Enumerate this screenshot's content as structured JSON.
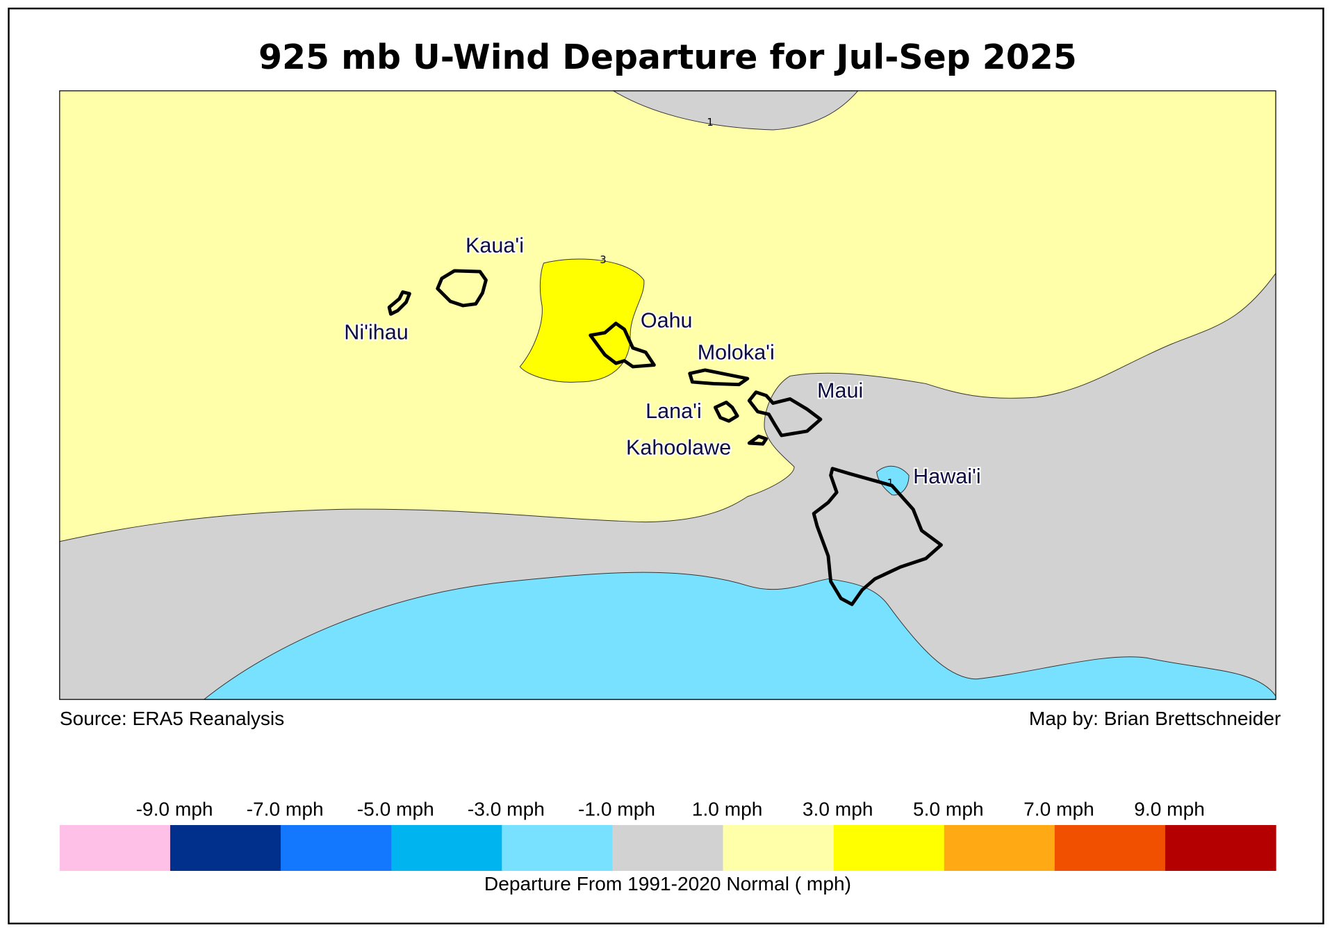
{
  "title": "925 mb U-Wind Departure for Jul-Sep 2025",
  "map": {
    "islands": [
      {
        "label": "Kaua'i"
      },
      {
        "label": "Ni'ihau"
      },
      {
        "label": "Oahu"
      },
      {
        "label": "Moloka'i"
      },
      {
        "label": "Maui"
      },
      {
        "label": "Lana'i"
      },
      {
        "label": "Kahoolawe"
      },
      {
        "label": "Hawai'i"
      }
    ],
    "contour_labels": [
      "1",
      "3",
      "-1"
    ]
  },
  "source": "Source: ERA5 Reanalysis",
  "credit": "Map by: Brian Brettschneider",
  "colorbar": {
    "colors": [
      "#ffc0e8",
      "#00308c",
      "#1478ff",
      "#00b4f0",
      "#78e1ff",
      "#d2d2d2",
      "#ffffaa",
      "#ffff00",
      "#ffaa14",
      "#f05000",
      "#b40000"
    ],
    "tick_labels": [
      "-9.0 mph",
      "-7.0 mph",
      "-5.0 mph",
      "-3.0 mph",
      "-1.0 mph",
      "1.0 mph",
      "3.0 mph",
      "5.0 mph",
      "7.0 mph",
      "9.0 mph"
    ],
    "label": "Departure From 1991-2020 Normal ( mph)"
  }
}
